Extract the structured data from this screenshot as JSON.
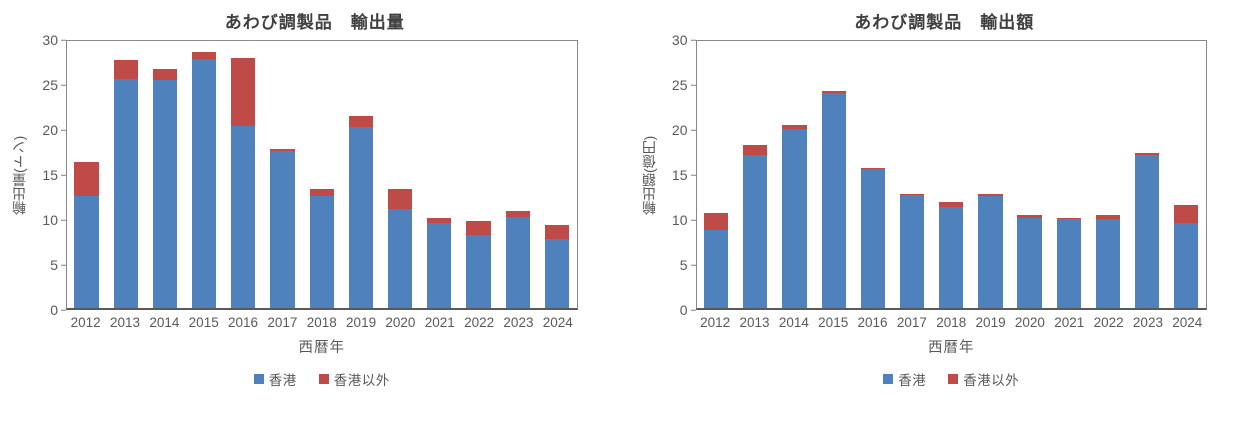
{
  "chart_data": [
    {
      "type": "bar",
      "stacked": true,
      "title": "あわび調製品　輸出量",
      "xlabel": "西暦年",
      "ylabel": "輸出量(トン)",
      "ylim": [
        0,
        30
      ],
      "yticks": [
        0,
        5,
        10,
        15,
        20,
        25,
        30
      ],
      "grid": false,
      "legend_position": "bottom",
      "categories": [
        "2012",
        "2013",
        "2014",
        "2015",
        "2016",
        "2017",
        "2018",
        "2019",
        "2020",
        "2021",
        "2022",
        "2023",
        "2024"
      ],
      "series": [
        {
          "name": "香港",
          "color": "#4F81BD",
          "values": [
            12.4,
            25.5,
            25.3,
            27.7,
            20.2,
            17.4,
            12.4,
            20.1,
            11.0,
            9.4,
            8.1,
            10.1,
            7.7
          ]
        },
        {
          "name": "香港以外",
          "color": "#BE4B48",
          "values": [
            3.8,
            2.1,
            1.3,
            0.7,
            7.6,
            0.3,
            0.8,
            1.2,
            2.2,
            0.6,
            1.6,
            0.7,
            1.5
          ]
        }
      ],
      "totals": [
        16.2,
        27.6,
        26.6,
        28.4,
        27.8,
        17.7,
        13.2,
        21.3,
        13.2,
        10.0,
        9.7,
        10.8,
        9.2
      ]
    },
    {
      "type": "bar",
      "stacked": true,
      "title": "あわび調製品　輸出額",
      "xlabel": "西暦年",
      "ylabel": "輸出額(億円)",
      "ylim": [
        0,
        30
      ],
      "yticks": [
        0,
        5,
        10,
        15,
        20,
        25,
        30
      ],
      "grid": false,
      "legend_position": "bottom",
      "categories": [
        "2012",
        "2013",
        "2014",
        "2015",
        "2016",
        "2017",
        "2018",
        "2019",
        "2020",
        "2021",
        "2022",
        "2023",
        "2024"
      ],
      "series": [
        {
          "name": "香港",
          "color": "#4F81BD",
          "values": [
            8.7,
            17.0,
            19.9,
            23.9,
            15.4,
            12.6,
            11.2,
            12.4,
            10.0,
            9.9,
            9.9,
            17.0,
            9.5
          ]
        },
        {
          "name": "香港以外",
          "color": "#BE4B48",
          "values": [
            1.9,
            1.1,
            0.4,
            0.2,
            0.2,
            0.1,
            0.6,
            0.3,
            0.3,
            0.1,
            0.4,
            0.2,
            2.0
          ]
        }
      ],
      "totals": [
        10.6,
        18.1,
        20.3,
        24.1,
        15.6,
        12.7,
        11.8,
        12.7,
        10.3,
        10.0,
        10.3,
        17.2,
        11.5
      ]
    }
  ],
  "colors": {
    "hong_kong_blue": "#4F81BD",
    "other_red": "#BE4B48",
    "axis_text": "#595959",
    "title_text": "#404040",
    "plot_border": "#898989"
  }
}
